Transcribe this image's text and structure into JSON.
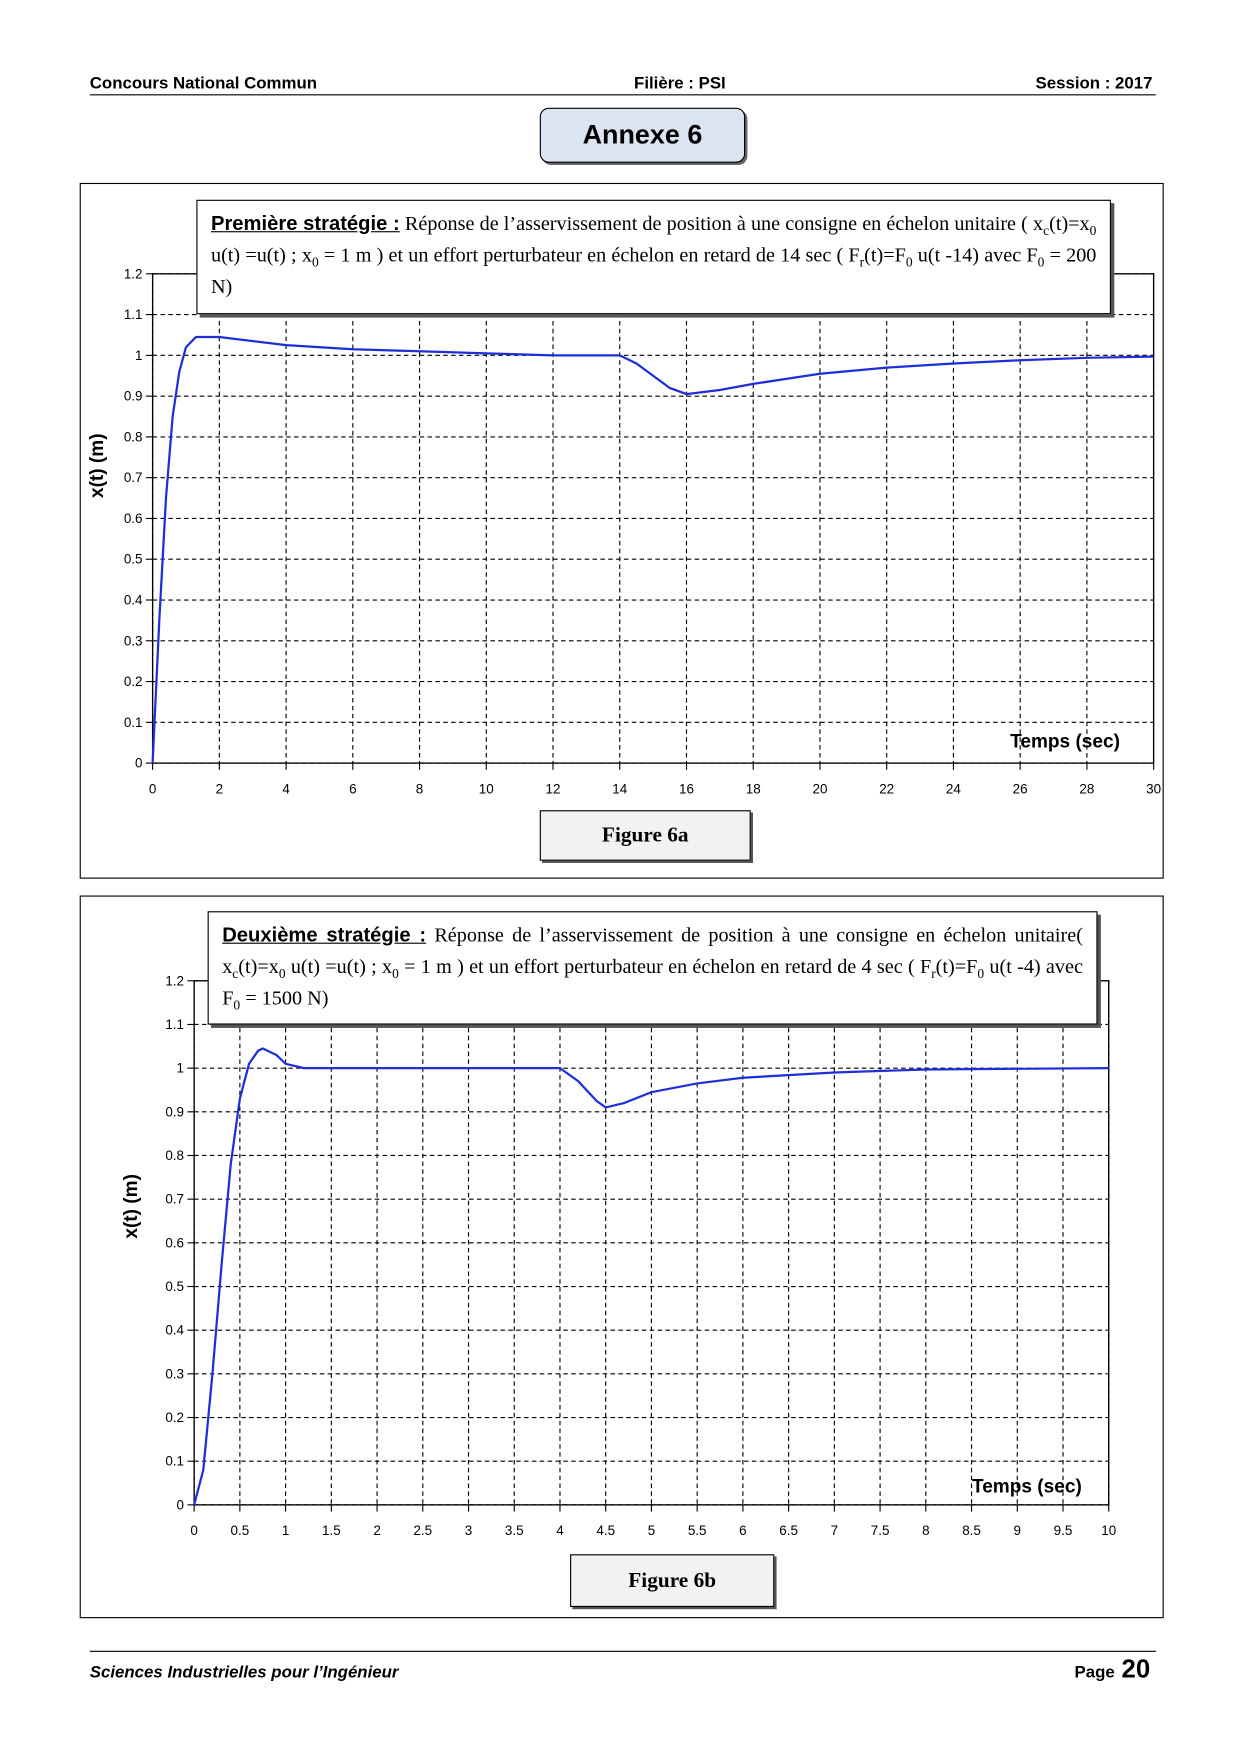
{
  "header": {
    "left": "Concours National Commun",
    "center": "Filière : PSI",
    "right": "Session : 2017"
  },
  "title": "Annexe 6",
  "chart_data": [
    {
      "type": "line",
      "heading": "Première stratégie :",
      "description": [
        {
          "text": "Réponse de l’asservissement de position à une consigne en échelon unitaire ( x"
        },
        {
          "sub": "c"
        },
        {
          "text": "(t)=x"
        },
        {
          "sub": "0"
        },
        {
          "text": " u(t) =u(t) ;   x"
        },
        {
          "sub": "0"
        },
        {
          "text": " = 1 m ) et un effort perturbateur en échelon en retard de 14 sec  ( F"
        },
        {
          "sub": "r"
        },
        {
          "text": "(t)=F"
        },
        {
          "sub": "0"
        },
        {
          "text": " u(t -14)   avec F"
        },
        {
          "sub": "0"
        },
        {
          "text": " = 200 N)"
        }
      ],
      "x_label": "Temps (sec)",
      "y_label": "x(t)  (m)",
      "caption": "Figure 6a",
      "xlim": [
        0,
        30
      ],
      "ylim": [
        0,
        1.2
      ],
      "xticks": [
        0,
        2,
        4,
        6,
        8,
        10,
        12,
        14,
        16,
        18,
        20,
        22,
        24,
        26,
        28,
        30
      ],
      "yticks": [
        0,
        0.1,
        0.2,
        0.3,
        0.4,
        0.5,
        0.6,
        0.7,
        0.8,
        0.9,
        1,
        1.1,
        1.2
      ],
      "grid": true,
      "series": [
        {
          "color": "#1f2fd8",
          "x": [
            0,
            0.2,
            0.4,
            0.6,
            0.8,
            1,
            1.3,
            2,
            4,
            6,
            8,
            10,
            12,
            14,
            14.5,
            15,
            15.5,
            16,
            17,
            18,
            20,
            22,
            24,
            26,
            28,
            30
          ],
          "values": [
            0,
            0.35,
            0.65,
            0.85,
            0.96,
            1.02,
            1.045,
            1.045,
            1.025,
            1.015,
            1.01,
            1.005,
            1.0,
            1.0,
            0.98,
            0.95,
            0.92,
            0.905,
            0.915,
            0.93,
            0.955,
            0.97,
            0.98,
            0.988,
            0.994,
            0.997
          ]
        }
      ]
    },
    {
      "type": "line",
      "heading": "Deuxième stratégie :",
      "description": [
        {
          "text": "Réponse de l’asservissement de position à une consigne en échelon unitaire( x"
        },
        {
          "sub": "c"
        },
        {
          "text": "(t)=x"
        },
        {
          "sub": "0"
        },
        {
          "text": " u(t) =u(t) ;   x"
        },
        {
          "sub": "0"
        },
        {
          "text": " = 1 m ) et un effort perturbateur en échelon en retard de 4 sec  ( F"
        },
        {
          "sub": "r"
        },
        {
          "text": "(t)=F"
        },
        {
          "sub": "0"
        },
        {
          "text": " u(t -4)   avec F"
        },
        {
          "sub": "0"
        },
        {
          "text": " = 1500 N)"
        }
      ],
      "x_label": "Temps (sec)",
      "y_label": "x(t)  (m)",
      "caption": "Figure 6b",
      "xlim": [
        0,
        10
      ],
      "ylim": [
        0,
        1.2
      ],
      "xticks": [
        0,
        0.5,
        1,
        1.5,
        2,
        2.5,
        3,
        3.5,
        4,
        4.5,
        5,
        5.5,
        6,
        6.5,
        7,
        7.5,
        8,
        8.5,
        9,
        9.5,
        10
      ],
      "yticks": [
        0,
        0.1,
        0.2,
        0.3,
        0.4,
        0.5,
        0.6,
        0.7,
        0.8,
        0.9,
        1,
        1.1,
        1.2
      ],
      "grid": true,
      "series": [
        {
          "color": "#1f2fd8",
          "x": [
            0,
            0.1,
            0.2,
            0.3,
            0.4,
            0.5,
            0.6,
            0.7,
            0.75,
            0.9,
            1,
            1.2,
            2,
            4,
            4.2,
            4.4,
            4.5,
            4.7,
            5,
            5.5,
            6,
            7,
            8,
            10
          ],
          "values": [
            0,
            0.08,
            0.3,
            0.55,
            0.78,
            0.93,
            1.01,
            1.04,
            1.045,
            1.03,
            1.01,
            1.0,
            1.0,
            1.0,
            0.97,
            0.925,
            0.91,
            0.92,
            0.945,
            0.965,
            0.978,
            0.99,
            0.997,
            1.0
          ]
        }
      ]
    }
  ],
  "footer": {
    "left": "Sciences Industrielles pour l’Ingénieur",
    "page_word": "Page",
    "page_number": "20"
  }
}
